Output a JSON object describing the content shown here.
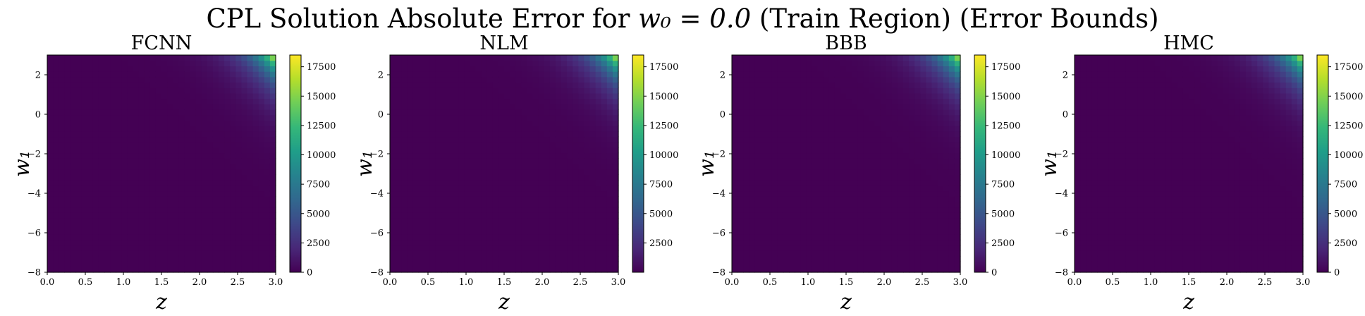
{
  "figure": {
    "title_prefix": "CPL Solution Absolute Error for ",
    "title_math": "w₀ = 0.0",
    "title_suffix": " (Train Region) (Error Bounds)"
  },
  "colormap": {
    "name": "viridis",
    "stops": [
      "#440154",
      "#482878",
      "#3e4989",
      "#31688e",
      "#26828e",
      "#1f9e89",
      "#35b779",
      "#6ece58",
      "#b5de2b",
      "#fde725"
    ]
  },
  "chart_data": [
    {
      "type": "heatmap",
      "title": "FCNN",
      "xlabel": "z",
      "ylabel": "w₁",
      "xlim": [
        0.0,
        3.0
      ],
      "ylim": [
        -8,
        3
      ],
      "xticks": [
        "0.0",
        "0.5",
        "1.0",
        "1.5",
        "2.0",
        "2.5",
        "3.0"
      ],
      "yticks": [
        "−8",
        "−6",
        "−4",
        "−2",
        "0",
        "2"
      ],
      "colorbar_range": [
        0,
        18500
      ],
      "colorbar_ticks": [
        "0",
        "2500",
        "5000",
        "7500",
        "10000",
        "12500",
        "15000",
        "17500"
      ],
      "max_error": 18500,
      "max_location": {
        "z": 3.0,
        "w1": 3.0
      }
    },
    {
      "type": "heatmap",
      "title": "NLM",
      "xlabel": "z",
      "ylabel": "w₁",
      "xlim": [
        0.0,
        3.0
      ],
      "ylim": [
        -8,
        3
      ],
      "xticks": [
        "0.0",
        "0.5",
        "1.0",
        "1.5",
        "2.0",
        "2.5",
        "3.0"
      ],
      "yticks": [
        "−8",
        "−6",
        "−4",
        "−2",
        "0",
        "2"
      ],
      "colorbar_range": [
        0,
        18500
      ],
      "colorbar_ticks": [
        "2500",
        "5000",
        "7500",
        "10000",
        "12500",
        "15000",
        "17500"
      ],
      "max_error": 18500,
      "max_location": {
        "z": 3.0,
        "w1": 3.0
      }
    },
    {
      "type": "heatmap",
      "title": "BBB",
      "xlabel": "z",
      "ylabel": "w₁",
      "xlim": [
        0.0,
        3.0
      ],
      "ylim": [
        -8,
        3
      ],
      "xticks": [
        "0.0",
        "0.5",
        "1.0",
        "1.5",
        "2.0",
        "2.5",
        "3.0"
      ],
      "yticks": [
        "−8",
        "−6",
        "−4",
        "−2",
        "0",
        "2"
      ],
      "colorbar_range": [
        0,
        18500
      ],
      "colorbar_ticks": [
        "0",
        "2500",
        "5000",
        "7500",
        "10000",
        "12500",
        "15000",
        "17500"
      ],
      "max_error": 18500,
      "max_location": {
        "z": 3.0,
        "w1": 3.0
      }
    },
    {
      "type": "heatmap",
      "title": "HMC",
      "xlabel": "z",
      "ylabel": "w₁",
      "xlim": [
        0.0,
        3.0
      ],
      "ylim": [
        -8,
        3
      ],
      "xticks": [
        "0.0",
        "0.5",
        "1.0",
        "1.5",
        "2.0",
        "2.5",
        "3.0"
      ],
      "yticks": [
        "−8",
        "−6",
        "−4",
        "−2",
        "0",
        "2"
      ],
      "colorbar_range": [
        0,
        18500
      ],
      "colorbar_ticks": [
        "0",
        "2500",
        "5000",
        "7500",
        "10000",
        "12500",
        "15000",
        "17500"
      ],
      "max_error": 18500,
      "max_location": {
        "z": 3.0,
        "w1": 3.0
      }
    }
  ]
}
